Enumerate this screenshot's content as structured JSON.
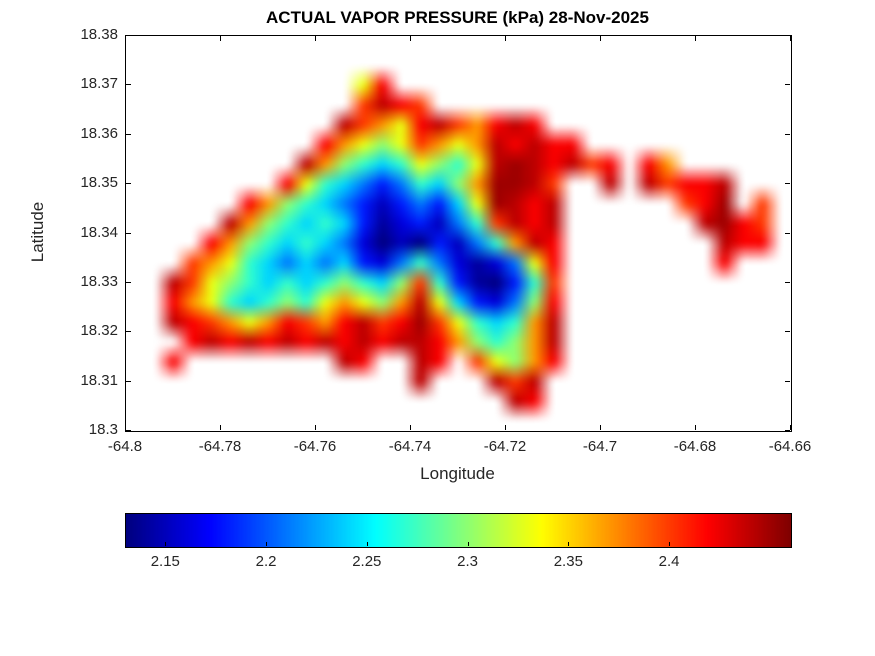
{
  "chart_data": {
    "type": "heatmap",
    "title": "ACTUAL VAPOR PRESSURE (kPa) 28-Nov-2025",
    "xlabel": "Longitude",
    "ylabel": "Latitude",
    "xlim": [
      -64.8,
      -64.66
    ],
    "ylim": [
      18.3,
      18.38
    ],
    "xtick_values": [
      -64.8,
      -64.78,
      -64.76,
      -64.74,
      -64.72,
      -64.7,
      -64.68,
      -64.66
    ],
    "xtick_labels": [
      "-64.8",
      "-64.78",
      "-64.76",
      "-64.74",
      "-64.72",
      "-64.7",
      "-64.68",
      "-64.66"
    ],
    "ytick_values": [
      18.3,
      18.31,
      18.32,
      18.33,
      18.34,
      18.35,
      18.36,
      18.37,
      18.38
    ],
    "ytick_labels": [
      "18.3",
      "18.31",
      "18.32",
      "18.33",
      "18.34",
      "18.35",
      "18.36",
      "18.37",
      "18.38"
    ],
    "colormap": "jet",
    "clim": [
      2.13,
      2.46
    ],
    "grid_on": false,
    "colorbar": {
      "orientation": "horizontal",
      "tick_values": [
        2.15,
        2.2,
        2.25,
        2.3,
        2.35,
        2.4
      ],
      "tick_labels": [
        "2.15",
        "2.2",
        "2.25",
        "2.3",
        "2.35",
        "2.4"
      ]
    },
    "grid": {
      "lon_start": -64.8,
      "lon_step": 0.004,
      "lat_start": 18.38,
      "lat_step": -0.004,
      "ncols": 36,
      "nrows": 20,
      "values": [
        [
          null,
          null,
          null,
          null,
          null,
          null,
          null,
          null,
          null,
          null,
          null,
          null,
          null,
          null,
          null,
          null,
          null,
          null,
          null,
          null,
          null,
          null,
          null,
          null,
          null,
          null,
          null,
          null,
          null,
          null,
          null,
          null,
          null,
          null,
          null,
          null
        ],
        [
          null,
          null,
          null,
          null,
          null,
          null,
          null,
          null,
          null,
          null,
          null,
          null,
          null,
          null,
          null,
          null,
          null,
          null,
          null,
          null,
          null,
          null,
          null,
          null,
          null,
          null,
          null,
          null,
          null,
          null,
          null,
          null,
          null,
          null,
          null,
          null
        ],
        [
          null,
          null,
          null,
          null,
          null,
          null,
          null,
          null,
          null,
          null,
          null,
          null,
          2.33,
          2.42,
          null,
          null,
          null,
          null,
          null,
          null,
          null,
          null,
          null,
          null,
          null,
          null,
          null,
          null,
          null,
          null,
          null,
          null,
          null,
          null,
          null,
          null
        ],
        [
          null,
          null,
          null,
          null,
          null,
          null,
          null,
          null,
          null,
          null,
          null,
          null,
          2.4,
          2.44,
          2.42,
          2.4,
          null,
          null,
          null,
          null,
          null,
          null,
          null,
          null,
          null,
          null,
          null,
          null,
          null,
          null,
          null,
          null,
          null,
          null,
          null,
          null
        ],
        [
          null,
          null,
          null,
          null,
          null,
          null,
          null,
          null,
          null,
          null,
          null,
          2.44,
          2.4,
          2.37,
          2.33,
          2.42,
          2.44,
          2.4,
          2.37,
          2.42,
          2.44,
          2.42,
          null,
          null,
          null,
          null,
          null,
          null,
          null,
          null,
          null,
          null,
          null,
          null,
          null,
          null
        ],
        [
          null,
          null,
          null,
          null,
          null,
          null,
          null,
          null,
          null,
          null,
          2.42,
          2.37,
          2.33,
          2.3,
          2.33,
          2.4,
          2.37,
          2.33,
          2.37,
          2.44,
          2.42,
          2.44,
          2.42,
          2.42,
          null,
          null,
          null,
          null,
          null,
          null,
          null,
          null,
          null,
          null,
          null,
          null
        ],
        [
          null,
          null,
          null,
          null,
          null,
          null,
          null,
          null,
          null,
          2.44,
          2.37,
          2.3,
          2.27,
          2.24,
          2.27,
          2.33,
          2.3,
          2.27,
          2.33,
          2.44,
          2.45,
          2.44,
          2.42,
          2.44,
          2.4,
          2.42,
          null,
          2.42,
          2.37,
          null,
          null,
          null,
          null,
          null,
          null,
          null
        ],
        [
          null,
          null,
          null,
          null,
          null,
          null,
          null,
          null,
          2.42,
          2.33,
          2.27,
          2.24,
          2.21,
          2.18,
          2.21,
          2.27,
          2.24,
          2.3,
          2.37,
          2.45,
          2.45,
          2.44,
          2.4,
          null,
          null,
          2.44,
          null,
          2.44,
          2.4,
          2.42,
          2.42,
          2.44,
          null,
          null,
          null,
          null
        ],
        [
          null,
          null,
          null,
          null,
          null,
          null,
          2.42,
          2.37,
          2.3,
          2.27,
          2.24,
          2.21,
          2.18,
          2.15,
          2.18,
          2.21,
          2.18,
          2.24,
          2.33,
          2.45,
          2.44,
          2.42,
          2.44,
          null,
          null,
          null,
          null,
          null,
          null,
          2.4,
          2.42,
          2.45,
          null,
          2.4,
          null,
          null
        ],
        [
          null,
          null,
          null,
          null,
          null,
          2.44,
          2.37,
          2.3,
          2.27,
          2.24,
          2.27,
          2.24,
          2.18,
          2.14,
          2.16,
          2.18,
          2.15,
          2.21,
          2.27,
          2.4,
          2.44,
          2.42,
          2.44,
          null,
          null,
          null,
          null,
          null,
          null,
          null,
          2.44,
          2.45,
          2.42,
          2.4,
          null,
          null
        ],
        [
          null,
          null,
          null,
          null,
          2.42,
          2.37,
          2.3,
          2.27,
          2.24,
          2.27,
          2.24,
          2.21,
          2.16,
          2.13,
          2.15,
          2.13,
          2.18,
          2.15,
          2.21,
          2.27,
          2.37,
          2.44,
          2.42,
          null,
          null,
          null,
          null,
          null,
          null,
          null,
          null,
          2.44,
          2.42,
          2.42,
          null,
          null
        ],
        [
          null,
          null,
          null,
          2.4,
          2.37,
          2.33,
          2.27,
          2.24,
          2.21,
          2.24,
          2.21,
          2.24,
          2.18,
          2.16,
          2.21,
          2.27,
          2.21,
          2.16,
          2.14,
          2.16,
          2.21,
          2.33,
          2.42,
          null,
          null,
          null,
          null,
          null,
          null,
          null,
          null,
          2.42,
          null,
          null,
          null,
          null
        ],
        [
          null,
          null,
          2.44,
          2.4,
          2.33,
          2.3,
          2.27,
          2.24,
          2.27,
          2.24,
          2.27,
          2.3,
          2.27,
          2.24,
          2.3,
          2.4,
          2.27,
          2.18,
          2.14,
          2.13,
          2.18,
          2.27,
          2.4,
          null,
          null,
          null,
          null,
          null,
          null,
          null,
          null,
          null,
          null,
          null,
          null,
          null
        ],
        [
          null,
          null,
          2.42,
          2.37,
          2.33,
          2.27,
          2.24,
          2.27,
          2.3,
          2.27,
          2.33,
          2.37,
          2.33,
          2.3,
          2.37,
          2.44,
          2.33,
          2.24,
          2.18,
          2.16,
          2.21,
          2.3,
          2.42,
          null,
          null,
          null,
          null,
          null,
          null,
          null,
          null,
          null,
          null,
          null,
          null,
          null
        ],
        [
          null,
          null,
          2.44,
          2.42,
          2.4,
          2.37,
          2.33,
          2.37,
          2.42,
          2.4,
          2.37,
          2.42,
          2.44,
          2.4,
          2.42,
          2.45,
          2.4,
          2.33,
          2.27,
          2.24,
          2.27,
          2.37,
          2.44,
          null,
          null,
          null,
          null,
          null,
          null,
          null,
          null,
          null,
          null,
          null,
          null,
          null
        ],
        [
          null,
          null,
          null,
          2.42,
          2.44,
          2.42,
          2.44,
          2.42,
          2.44,
          2.42,
          2.44,
          2.42,
          2.44,
          2.42,
          2.44,
          2.44,
          2.42,
          2.37,
          2.3,
          2.27,
          2.3,
          2.37,
          2.44,
          null,
          null,
          null,
          null,
          null,
          null,
          null,
          null,
          null,
          null,
          null,
          null,
          null
        ],
        [
          null,
          null,
          2.42,
          null,
          null,
          null,
          null,
          null,
          null,
          null,
          null,
          2.44,
          2.42,
          null,
          null,
          2.44,
          2.42,
          null,
          2.4,
          2.33,
          2.3,
          2.37,
          2.42,
          null,
          null,
          null,
          null,
          null,
          null,
          null,
          null,
          null,
          null,
          null,
          null,
          null
        ],
        [
          null,
          null,
          null,
          null,
          null,
          null,
          null,
          null,
          null,
          null,
          null,
          null,
          null,
          null,
          null,
          2.44,
          null,
          null,
          null,
          2.44,
          2.4,
          2.44,
          null,
          null,
          null,
          null,
          null,
          null,
          null,
          null,
          null,
          null,
          null,
          null,
          null,
          null
        ],
        [
          null,
          null,
          null,
          null,
          null,
          null,
          null,
          null,
          null,
          null,
          null,
          null,
          null,
          null,
          null,
          null,
          null,
          null,
          null,
          null,
          2.44,
          2.42,
          null,
          null,
          null,
          null,
          null,
          null,
          null,
          null,
          null,
          null,
          null,
          null,
          null,
          null
        ],
        [
          null,
          null,
          null,
          null,
          null,
          null,
          null,
          null,
          null,
          null,
          null,
          null,
          null,
          null,
          null,
          null,
          null,
          null,
          null,
          null,
          null,
          null,
          null,
          null,
          null,
          null,
          null,
          null,
          null,
          null,
          null,
          null,
          null,
          null,
          null,
          null
        ]
      ]
    }
  }
}
